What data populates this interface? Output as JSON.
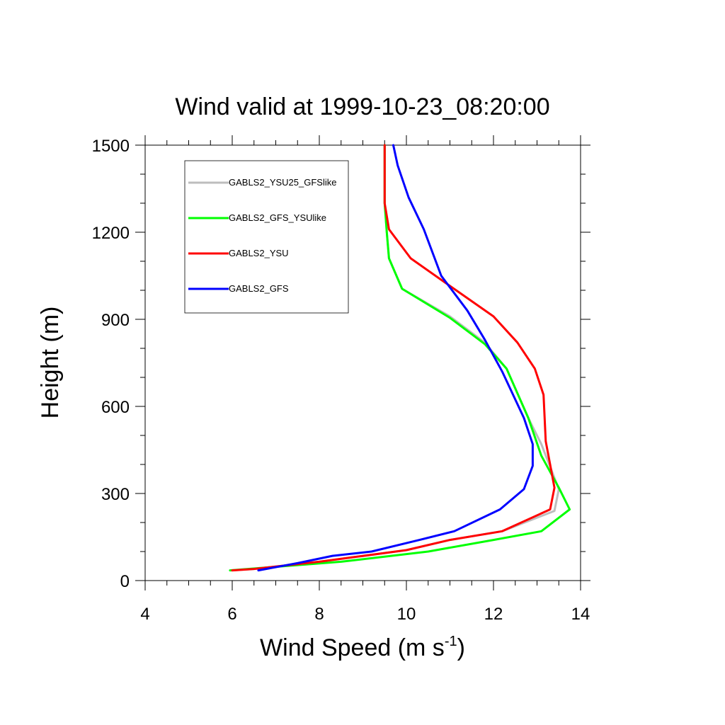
{
  "chart_data": {
    "type": "line",
    "title": "Wind valid at 1999-10-23_08:20:00",
    "xlabel_main": "Wind Speed (m s",
    "xlabel_sup": "-1",
    "xlabel_close": ")",
    "ylabel": "Height (m)",
    "xlim": [
      4,
      14
    ],
    "ylim": [
      0,
      1500
    ],
    "xticks": [
      4,
      6,
      8,
      10,
      12,
      14
    ],
    "yticks": [
      0,
      300,
      600,
      900,
      1200,
      1500
    ],
    "legend_placement": "top-left",
    "grid": false,
    "series": [
      {
        "name": "GABLS2_YSU25_GFSlike",
        "color": "#bdbdbd",
        "points": [
          [
            6.0,
            35
          ],
          [
            6.5,
            40
          ],
          [
            8.0,
            65
          ],
          [
            10.0,
            105
          ],
          [
            11.0,
            140
          ],
          [
            12.2,
            170
          ],
          [
            13.4,
            240
          ],
          [
            13.5,
            315
          ],
          [
            13.1,
            470
          ],
          [
            12.8,
            560
          ],
          [
            12.3,
            730
          ],
          [
            11.8,
            820
          ],
          [
            11.0,
            910
          ],
          [
            9.9,
            1005
          ],
          [
            9.6,
            1110
          ],
          [
            9.55,
            1200
          ],
          [
            9.5,
            1300
          ],
          [
            9.5,
            1400
          ],
          [
            9.5,
            1500
          ]
        ]
      },
      {
        "name": "GABLS2_GFS_YSUlike",
        "color": "#00ff00",
        "points": [
          [
            5.95,
            35
          ],
          [
            8.5,
            65
          ],
          [
            10.5,
            100
          ],
          [
            12.0,
            140
          ],
          [
            13.1,
            170
          ],
          [
            13.75,
            245
          ],
          [
            13.5,
            320
          ],
          [
            13.1,
            430
          ],
          [
            12.8,
            560
          ],
          [
            12.3,
            730
          ],
          [
            11.8,
            815
          ],
          [
            11.0,
            905
          ],
          [
            9.9,
            1005
          ],
          [
            9.6,
            1110
          ],
          [
            9.55,
            1200
          ],
          [
            9.5,
            1300
          ],
          [
            9.5,
            1400
          ],
          [
            9.5,
            1500
          ]
        ]
      },
      {
        "name": "GABLS2_YSU",
        "color": "#ff0000",
        "points": [
          [
            6.0,
            35
          ],
          [
            6.5,
            40
          ],
          [
            8.0,
            65
          ],
          [
            10.0,
            105
          ],
          [
            11.0,
            140
          ],
          [
            12.2,
            170
          ],
          [
            13.3,
            245
          ],
          [
            13.4,
            320
          ],
          [
            13.3,
            400
          ],
          [
            13.2,
            480
          ],
          [
            13.15,
            640
          ],
          [
            12.95,
            730
          ],
          [
            12.55,
            820
          ],
          [
            12.0,
            910
          ],
          [
            11.0,
            1015
          ],
          [
            10.1,
            1110
          ],
          [
            9.6,
            1210
          ],
          [
            9.5,
            1300
          ],
          [
            9.5,
            1400
          ],
          [
            9.5,
            1500
          ]
        ]
      },
      {
        "name": "GABLS2_GFS",
        "color": "#0000ff",
        "points": [
          [
            6.6,
            35
          ],
          [
            7.5,
            60
          ],
          [
            8.3,
            85
          ],
          [
            9.2,
            100
          ],
          [
            10.3,
            140
          ],
          [
            11.1,
            170
          ],
          [
            12.15,
            245
          ],
          [
            12.7,
            315
          ],
          [
            12.9,
            395
          ],
          [
            12.9,
            470
          ],
          [
            12.7,
            560
          ],
          [
            12.2,
            720
          ],
          [
            11.8,
            830
          ],
          [
            11.4,
            930
          ],
          [
            10.8,
            1050
          ],
          [
            10.4,
            1210
          ],
          [
            10.05,
            1320
          ],
          [
            9.8,
            1430
          ],
          [
            9.7,
            1500
          ]
        ]
      }
    ]
  }
}
